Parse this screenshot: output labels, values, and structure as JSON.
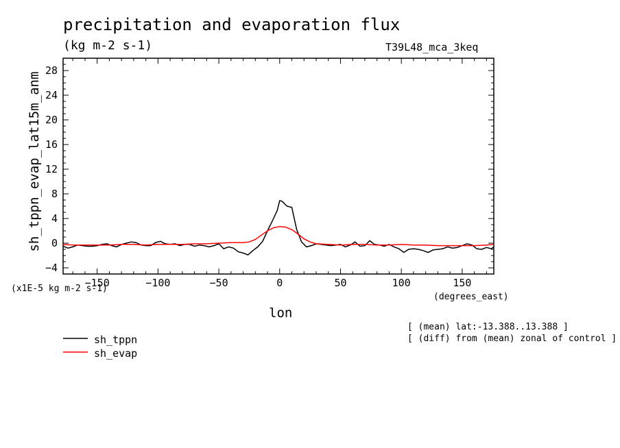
{
  "chart_data": {
    "type": "line",
    "title": "precipitation and evaporation flux",
    "subtitle": "(kg m-2 s-1)",
    "run_id": "T39L48_mca_3keq",
    "xlabel": "lon",
    "x_units": "(degrees_east)",
    "ylabel": "sh_tppn_evap_lat15m_anm",
    "y_units": "(x1E-5 kg m-2 s-1)",
    "notes": [
      "[ (mean) lat:-13.388..13.388 ]",
      "[ (diff) from (mean) zonal of control ]"
    ],
    "xlim": [
      -178,
      176
    ],
    "ylim": [
      -5,
      30
    ],
    "x_ticks": [
      -150,
      -100,
      -50,
      0,
      50,
      100,
      150
    ],
    "x_tick_labels": [
      "−150",
      "−100",
      "−50",
      "0",
      "50",
      "100",
      "150"
    ],
    "y_ticks": [
      -4,
      0,
      4,
      8,
      12,
      16,
      20,
      24,
      28
    ],
    "y_tick_labels": [
      "−4",
      "0",
      "4",
      "8",
      "12",
      "16",
      "20",
      "24",
      "28"
    ],
    "grid": false,
    "legend_position": "bottom-left",
    "series": [
      {
        "name": "sh_tppn",
        "color": "#000000",
        "x": [
          -178,
          -174,
          -170,
          -166,
          -162,
          -158,
          -154,
          -150,
          -146,
          -142,
          -138,
          -134,
          -130,
          -126,
          -122,
          -118,
          -114,
          -110,
          -106,
          -102,
          -98,
          -94,
          -90,
          -86,
          -82,
          -78,
          -74,
          -70,
          -66,
          -62,
          -58,
          -54,
          -50,
          -46,
          -42,
          -38,
          -34,
          -30,
          -26,
          -22,
          -18,
          -14,
          -10,
          -6,
          -2,
          0,
          2,
          6,
          10,
          14,
          18,
          22,
          26,
          30,
          34,
          38,
          42,
          46,
          50,
          54,
          58,
          62,
          66,
          70,
          74,
          78,
          82,
          86,
          90,
          94,
          98,
          102,
          106,
          110,
          114,
          118,
          122,
          126,
          130,
          134,
          138,
          142,
          146,
          150,
          154,
          158,
          162,
          166,
          170,
          174,
          176
        ],
        "values": [
          -0.5,
          -0.8,
          -0.6,
          -0.3,
          -0.4,
          -0.5,
          -0.5,
          -0.4,
          -0.2,
          -0.1,
          -0.4,
          -0.6,
          -0.2,
          0.0,
          0.2,
          0.1,
          -0.3,
          -0.4,
          -0.4,
          0.1,
          0.3,
          -0.1,
          -0.2,
          -0.1,
          -0.4,
          -0.2,
          -0.2,
          -0.5,
          -0.3,
          -0.4,
          -0.6,
          -0.4,
          -0.1,
          -0.9,
          -0.6,
          -0.8,
          -1.4,
          -1.6,
          -1.9,
          -1.2,
          -0.6,
          0.3,
          2.0,
          3.6,
          5.3,
          6.9,
          6.8,
          6.0,
          5.8,
          2.2,
          0.2,
          -0.6,
          -0.4,
          -0.1,
          -0.2,
          -0.3,
          -0.4,
          -0.3,
          -0.2,
          -0.6,
          -0.3,
          0.2,
          -0.5,
          -0.4,
          0.4,
          -0.2,
          -0.3,
          -0.5,
          -0.2,
          -0.6,
          -0.9,
          -1.5,
          -1.0,
          -0.9,
          -1.0,
          -1.2,
          -1.5,
          -1.1,
          -1.0,
          -0.9,
          -0.6,
          -0.8,
          -0.7,
          -0.4,
          -0.1,
          -0.3,
          -0.9,
          -1.0,
          -0.7,
          -0.9,
          -0.6
        ]
      },
      {
        "name": "sh_evap",
        "color": "#ff0000",
        "x": [
          -178,
          -170,
          -160,
          -150,
          -140,
          -130,
          -120,
          -110,
          -100,
          -90,
          -80,
          -70,
          -60,
          -50,
          -40,
          -30,
          -25,
          -20,
          -15,
          -10,
          -5,
          0,
          5,
          10,
          15,
          20,
          25,
          30,
          40,
          50,
          60,
          70,
          80,
          90,
          100,
          110,
          120,
          130,
          140,
          150,
          160,
          170,
          176
        ],
        "values": [
          -0.2,
          -0.3,
          -0.3,
          -0.3,
          -0.3,
          -0.2,
          -0.2,
          -0.3,
          -0.2,
          -0.2,
          -0.2,
          -0.1,
          -0.1,
          0.0,
          0.1,
          0.1,
          0.2,
          0.6,
          1.3,
          2.0,
          2.5,
          2.7,
          2.6,
          2.2,
          1.5,
          0.7,
          0.2,
          -0.1,
          -0.2,
          -0.3,
          -0.2,
          -0.2,
          -0.3,
          -0.3,
          -0.2,
          -0.3,
          -0.3,
          -0.4,
          -0.4,
          -0.4,
          -0.4,
          -0.3,
          -0.2
        ]
      }
    ]
  }
}
